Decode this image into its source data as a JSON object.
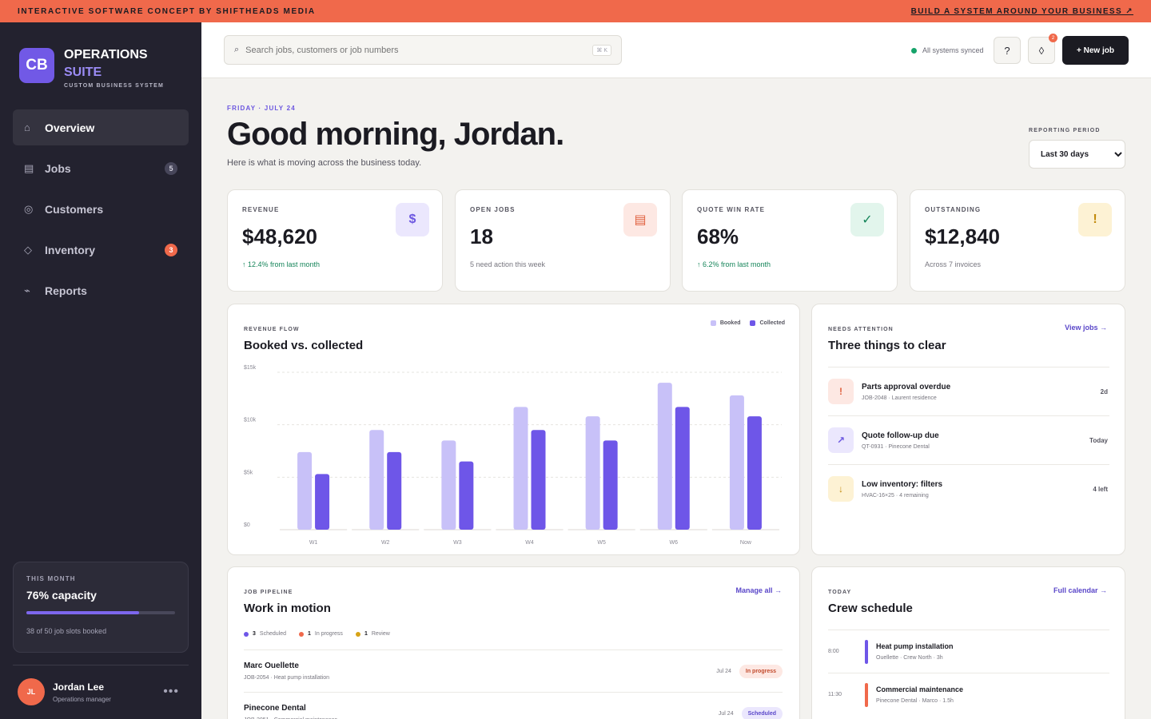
{
  "banner": {
    "left": "INTERACTIVE SOFTWARE CONCEPT BY SHIFTHEADS MEDIA",
    "right": "BUILD A SYSTEM AROUND YOUR BUSINESS ↗"
  },
  "brand": {
    "logo": "CB",
    "title": "OPERATIONS",
    "title2": "SUITE",
    "subtitle": "CUSTOM BUSINESS SYSTEM"
  },
  "nav": [
    {
      "label": "Overview",
      "icon": "home-icon",
      "glyph": "⌂",
      "badge": ""
    },
    {
      "label": "Jobs",
      "icon": "list-icon",
      "glyph": "▤",
      "badge": "5"
    },
    {
      "label": "Customers",
      "icon": "customers-icon",
      "glyph": "◎",
      "badge": ""
    },
    {
      "label": "Inventory",
      "icon": "diamond-icon",
      "glyph": "◇",
      "badge": "3"
    },
    {
      "label": "Reports",
      "icon": "trend-icon",
      "glyph": "⌁",
      "badge": ""
    }
  ],
  "capacity": {
    "label": "THIS MONTH",
    "value": "76% capacity",
    "fraction": 0.76,
    "detail": "38 of 50 job slots booked"
  },
  "user": {
    "initials": "JL",
    "name": "Jordan Lee",
    "role": "Operations manager",
    "more": "•••"
  },
  "header": {
    "search_placeholder": "Search jobs, customers or job numbers",
    "shortcut": "⌘ K",
    "sync": "All systems synced",
    "help": "?",
    "notif_count": "2",
    "new_job": "+ New job"
  },
  "greeting": {
    "date": "FRIDAY · JULY 24",
    "title": "Good morning, Jordan.",
    "subtitle": "Here is what is moving across the business today."
  },
  "period": {
    "label": "REPORTING PERIOD",
    "value": "Last 30 days"
  },
  "kpis": [
    {
      "label": "REVENUE",
      "value": "$48,620",
      "sub": "↑ 12.4% from last month",
      "icon": "$",
      "up": true,
      "iconbg": "#ebe7fd",
      "iconfg": "#6c57e0"
    },
    {
      "label": "OPEN JOBS",
      "value": "18",
      "sub": "5 need action this week",
      "icon": "▤",
      "up": false,
      "iconbg": "#fde8e3",
      "iconfg": "#e0613f"
    },
    {
      "label": "QUOTE WIN RATE",
      "value": "68%",
      "sub": "↑ 6.2% from last month",
      "icon": "✓",
      "up": true,
      "iconbg": "#e2f5ec",
      "iconfg": "#16855a"
    },
    {
      "label": "OUTSTANDING",
      "value": "$12,840",
      "sub": "Across 7 invoices",
      "icon": "!",
      "up": false,
      "iconbg": "#fdf2d4",
      "iconfg": "#c28a0c"
    }
  ],
  "revenue": {
    "label": "REVENUE FLOW",
    "title": "Booked vs. collected"
  },
  "chart_data": {
    "type": "bar",
    "categories": [
      "W1",
      "W2",
      "W3",
      "W4",
      "W5",
      "W6",
      "Now"
    ],
    "series": [
      {
        "name": "Booked",
        "values": [
          7400,
          9500,
          8500,
          11700,
          10800,
          14000,
          12800
        ],
        "color": "#c8c1f8"
      },
      {
        "name": "Collected",
        "values": [
          5300,
          7400,
          6500,
          9500,
          8500,
          11700,
          10800
        ],
        "color": "#6e56e8"
      }
    ],
    "yticks": [
      "$0",
      "$5k",
      "$10k",
      "$15k"
    ],
    "ylim": [
      0,
      15000
    ],
    "legend": "top-right",
    "grid": true
  },
  "attention": {
    "label": "NEEDS ATTENTION",
    "title": "Three things to clear",
    "link": "View jobs →",
    "items": [
      {
        "title": "Parts approval overdue",
        "sub": "JOB-2048 · Laurent residence",
        "meta": "2d",
        "icon": "!",
        "bg": "#fde8e3",
        "fg": "#e0613f"
      },
      {
        "title": "Quote follow-up due",
        "sub": "QT-0931 · Pinecone Dental",
        "meta": "Today",
        "icon": "↗",
        "bg": "#ebe7fd",
        "fg": "#6c57e0"
      },
      {
        "title": "Low inventory: filters",
        "sub": "HVAC-16×25 · 4 remaining",
        "meta": "4 left",
        "icon": "↓",
        "bg": "#fdf2d4",
        "fg": "#c28a0c"
      }
    ]
  },
  "pipeline": {
    "label": "JOB PIPELINE",
    "title": "Work in motion",
    "link": "Manage all →",
    "legend": [
      {
        "count": "3",
        "label": "Scheduled",
        "color": "#6e56e8"
      },
      {
        "count": "1",
        "label": "In progress",
        "color": "#f0694b"
      },
      {
        "count": "1",
        "label": "Review",
        "color": "#d7a317"
      }
    ],
    "jobs": [
      {
        "name": "Marc Ouellette",
        "sub": "JOB-2054 · Heat pump installation",
        "date": "Jul 24",
        "status": "In progress",
        "bg": "#fde8e3",
        "fg": "#c24a2c"
      },
      {
        "name": "Pinecone Dental",
        "sub": "JOB-2051 · Commercial maintenance",
        "date": "Jul 24",
        "status": "Scheduled",
        "bg": "#ebe7fd",
        "fg": "#5a47c9"
      }
    ]
  },
  "schedule": {
    "label": "TODAY",
    "title": "Crew schedule",
    "link": "Full calendar →",
    "items": [
      {
        "time": "8:00",
        "title": "Heat pump installation",
        "sub": "Ouellette · Crew North · 3h",
        "color": "#6e56e8"
      },
      {
        "time": "11:30",
        "title": "Commercial maintenance",
        "sub": "Pinecone Dental · Marco · 1.5h",
        "color": "#f0694b"
      }
    ]
  }
}
